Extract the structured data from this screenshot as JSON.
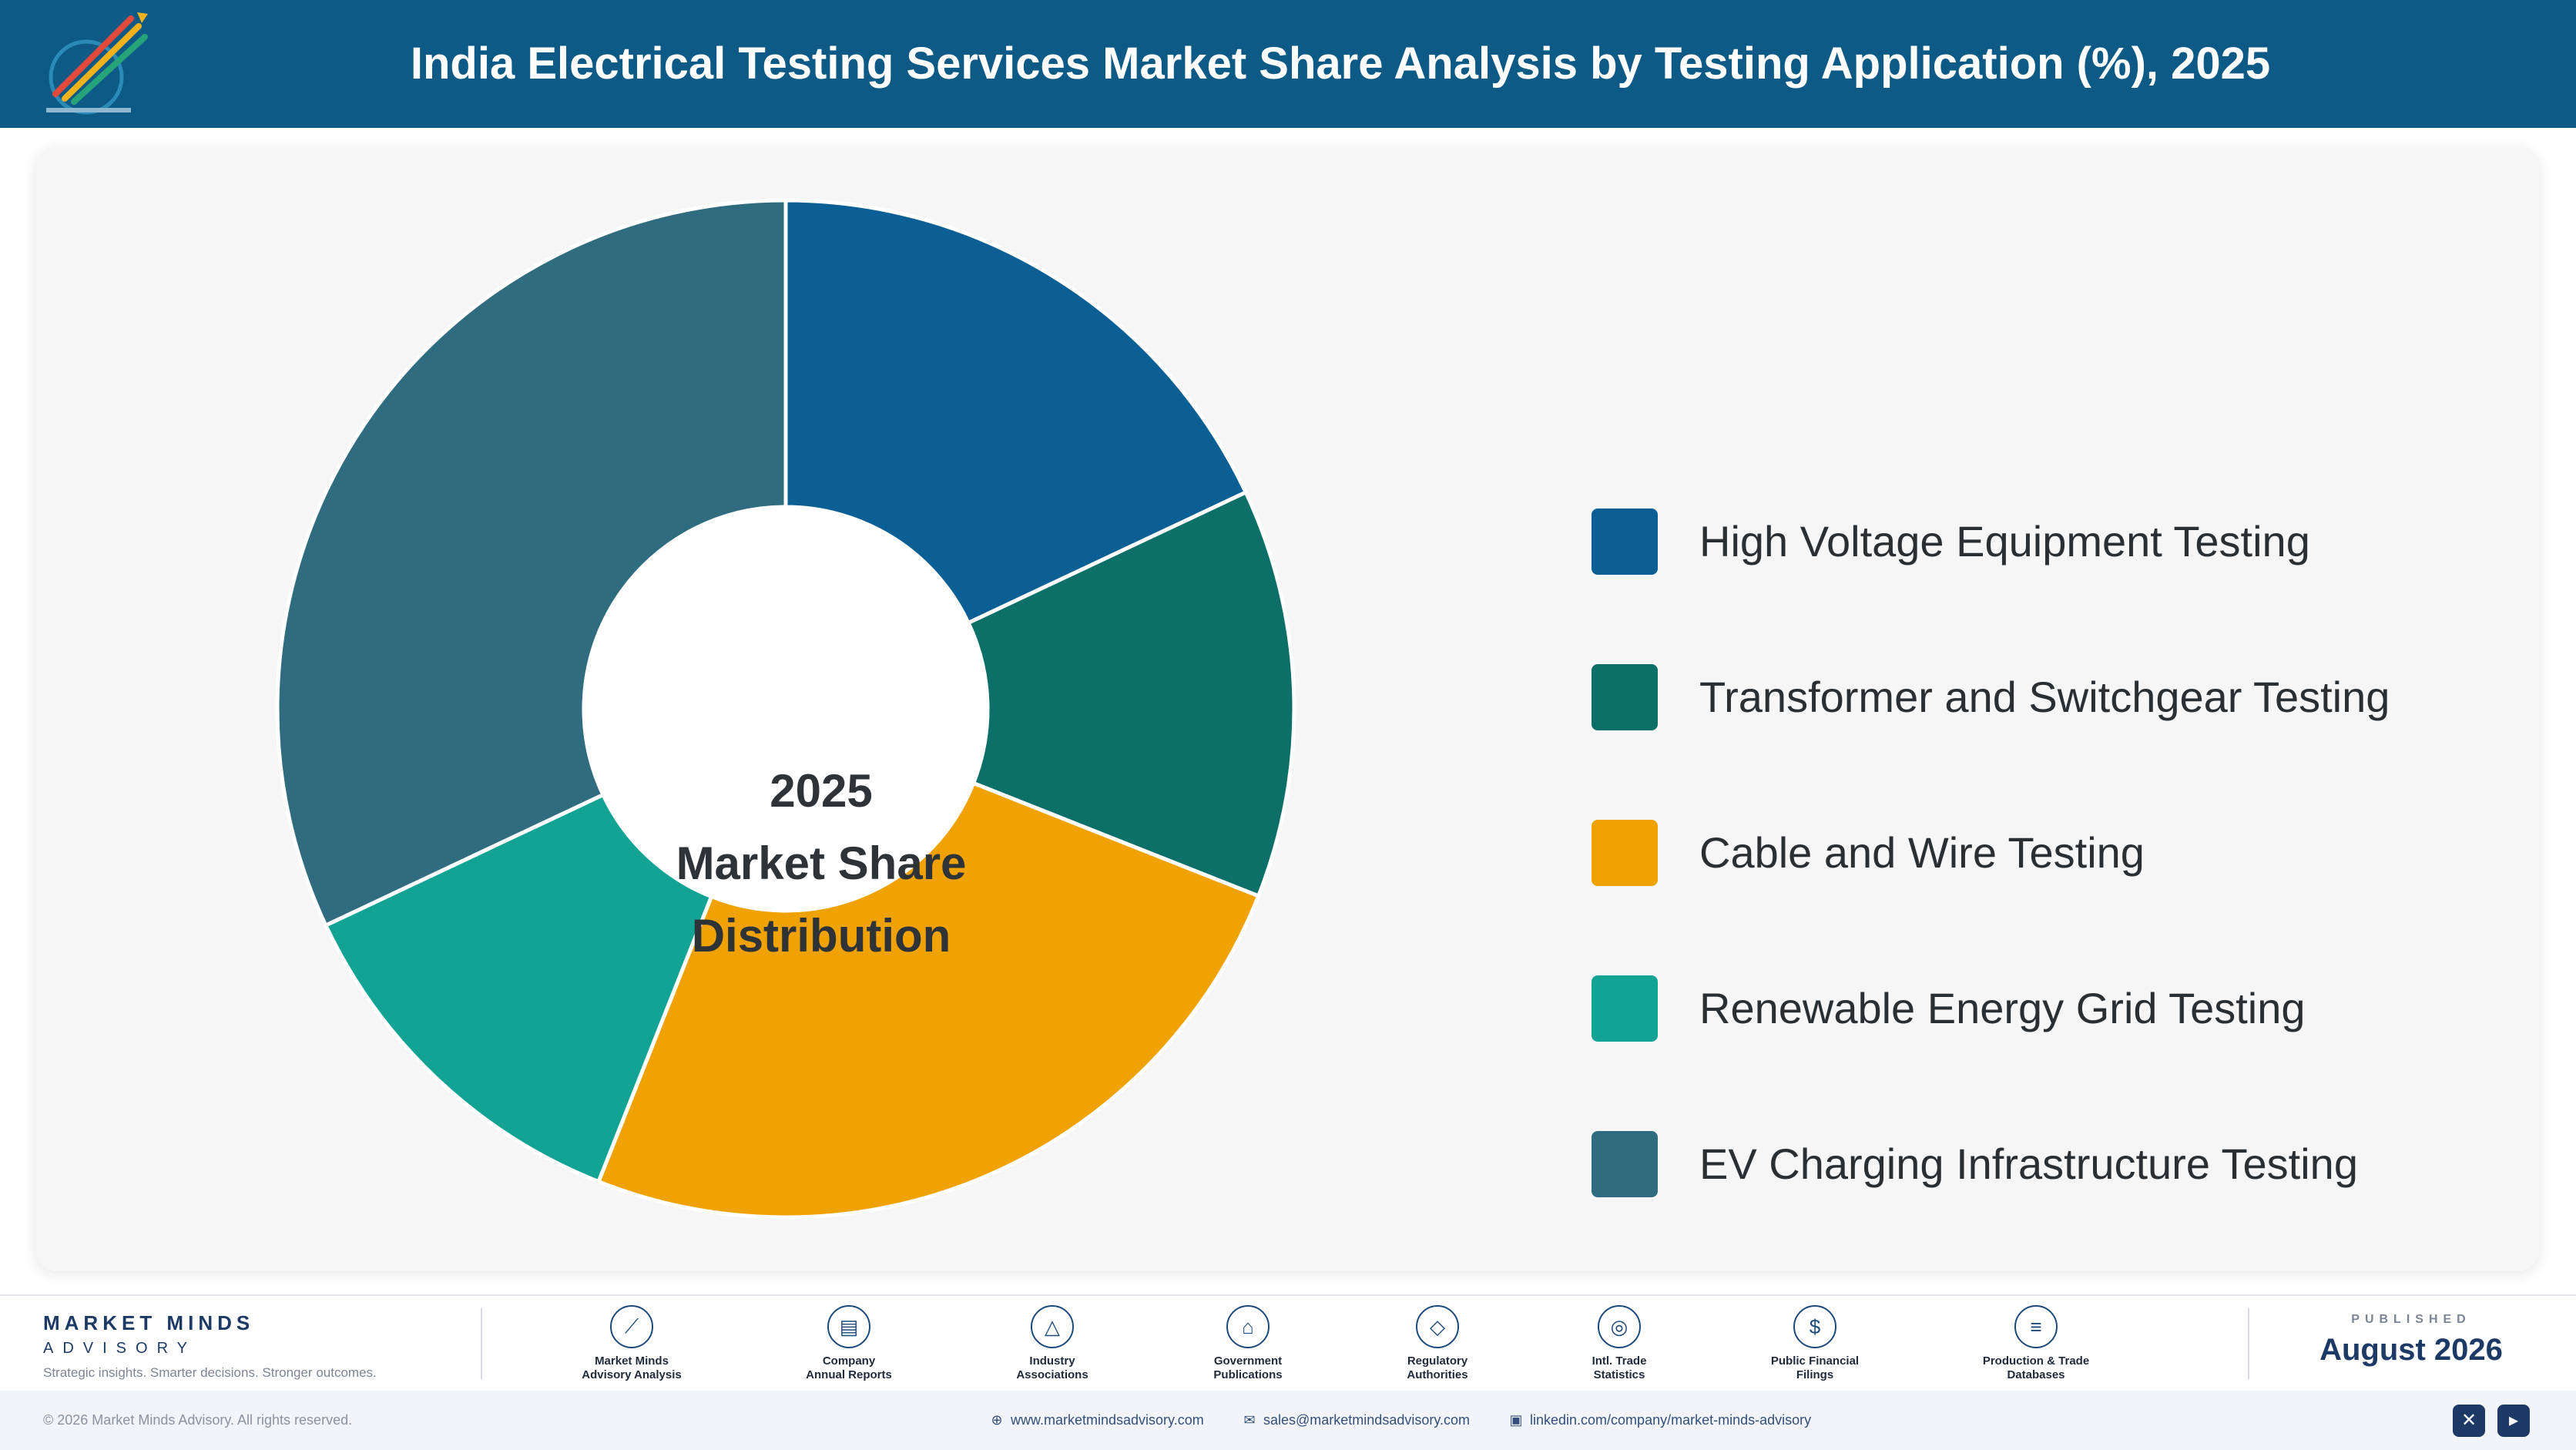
{
  "header": {
    "title": "India Electrical Testing Services Market Share Analysis by Testing Application (%), 2025"
  },
  "chart_data": {
    "type": "pie",
    "title": "India Electrical Testing Services Market Share Analysis by Testing Application (%), 2025",
    "center_label": [
      "2025",
      "Market Share",
      "Distribution"
    ],
    "categories": [
      "High Voltage Equipment Testing",
      "Transformer and Switchgear Testing",
      "Cable and Wire Testing",
      "Renewable Energy Grid Testing",
      "EV Charging Infrastructure Testing"
    ],
    "values": [
      18,
      13,
      25,
      12,
      32
    ],
    "colors": [
      "#0b5f95",
      "#0d7068",
      "#f0a202",
      "#12a394",
      "#306c80"
    ],
    "legend_position": "right",
    "donut": true
  },
  "footer": {
    "brand_name": "MARKET MINDS",
    "brand_sub": "ADVISORY",
    "brand_tagline": "Strategic insights. Smarter decisions. Stronger outcomes.",
    "sources": [
      {
        "label1": "Market Minds",
        "label2": "Advisory Analysis",
        "icon": "chart-line-icon"
      },
      {
        "label1": "Company",
        "label2": "Annual Reports",
        "icon": "document-icon"
      },
      {
        "label1": "Industry",
        "label2": "Associations",
        "icon": "network-icon"
      },
      {
        "label1": "Government",
        "label2": "Publications",
        "icon": "bank-icon"
      },
      {
        "label1": "Regulatory",
        "label2": "Authorities",
        "icon": "shield-icon"
      },
      {
        "label1": "Intl. Trade",
        "label2": "Statistics",
        "icon": "globe-icon"
      },
      {
        "label1": "Public Financial",
        "label2": "Filings",
        "icon": "coin-icon"
      },
      {
        "label1": "Production & Trade",
        "label2": "Databases",
        "icon": "database-icon"
      }
    ],
    "published_label": "PUBLISHED",
    "published_date": "August 2026",
    "copyright": "© 2026 Market Minds Advisory. All rights reserved.",
    "website": "www.marketmindsadvisory.com",
    "email": "sales@marketmindsadvisory.com",
    "linkedin": "linkedin.com/company/market-minds-advisory"
  }
}
